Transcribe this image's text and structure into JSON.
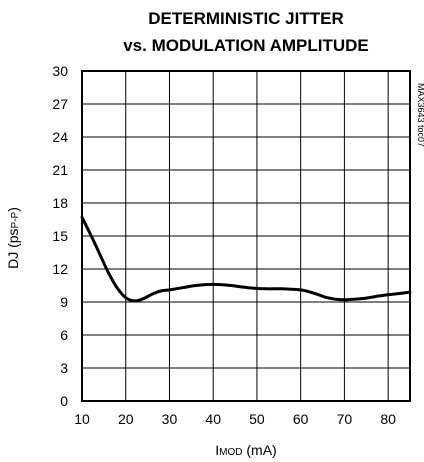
{
  "chart_data": {
    "type": "line",
    "title_line1": "DETERMINISTIC JITTER",
    "title_line2": "vs. MODULATION AMPLITUDE",
    "xlabel_main": "I",
    "xlabel_sub": "MOD",
    "xlabel_unit": " (mA)",
    "ylabel_main": "DJ (ps",
    "ylabel_sub": "P-P",
    "ylabel_end": ")",
    "side_label": "MAX3643 toc07",
    "xlim": [
      10,
      85
    ],
    "ylim": [
      0,
      30
    ],
    "xticks": [
      10,
      20,
      30,
      40,
      50,
      60,
      70,
      80
    ],
    "yticks": [
      0,
      3,
      6,
      9,
      12,
      15,
      18,
      21,
      24,
      27,
      30
    ],
    "grid": true,
    "series": [
      {
        "x": [
          10,
          12,
          14,
          16,
          18,
          20,
          22,
          24,
          26,
          28,
          30,
          33,
          36,
          40,
          44,
          48,
          52,
          56,
          60,
          63,
          66,
          68,
          70,
          72,
          75,
          78,
          82,
          85
        ],
        "values": [
          16.7,
          15.1,
          13.4,
          11.7,
          10.3,
          9.4,
          9.1,
          9.3,
          9.7,
          10.0,
          10.1,
          10.3,
          10.5,
          10.6,
          10.5,
          10.3,
          10.2,
          10.2,
          10.1,
          9.8,
          9.4,
          9.25,
          9.2,
          9.25,
          9.35,
          9.55,
          9.75,
          9.9
        ]
      }
    ]
  }
}
